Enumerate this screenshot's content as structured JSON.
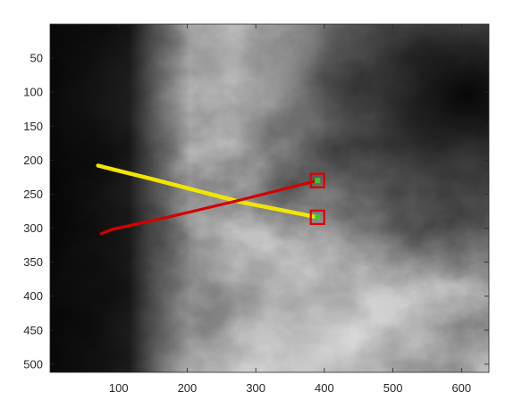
{
  "chart_data": {
    "type": "scatter",
    "title": "",
    "xlabel": "",
    "ylabel": "",
    "xlim": [
      0,
      640
    ],
    "ylim": [
      512,
      0
    ],
    "y_axis_reversed": true,
    "grid": false,
    "legend": "none",
    "x_ticks": [
      100,
      200,
      300,
      400,
      500,
      600
    ],
    "y_ticks": [
      50,
      100,
      150,
      200,
      250,
      300,
      350,
      400,
      450,
      500
    ],
    "background": "grayscale image (cloud-like brightness field), dark region on left and top-right",
    "series": [
      {
        "color": "#f2e600",
        "points": [
          [
            70,
            208
          ],
          [
            78,
            210
          ],
          [
            150,
            228
          ],
          [
            280,
            262
          ],
          [
            390,
            284
          ]
        ]
      },
      {
        "color": "#d40000",
        "points": [
          [
            75,
            308
          ],
          [
            90,
            302
          ],
          [
            180,
            282
          ],
          [
            280,
            258
          ],
          [
            390,
            230
          ]
        ]
      }
    ],
    "markers": [
      {
        "x": 390,
        "y": 230,
        "box_color": "#e00000",
        "center_color": "#33cc33"
      },
      {
        "x": 390,
        "y": 284,
        "box_color": "#e00000",
        "center_color": "#33cc33"
      }
    ]
  },
  "colors": {
    "axis": "#262626",
    "frame": "#ffffff"
  }
}
